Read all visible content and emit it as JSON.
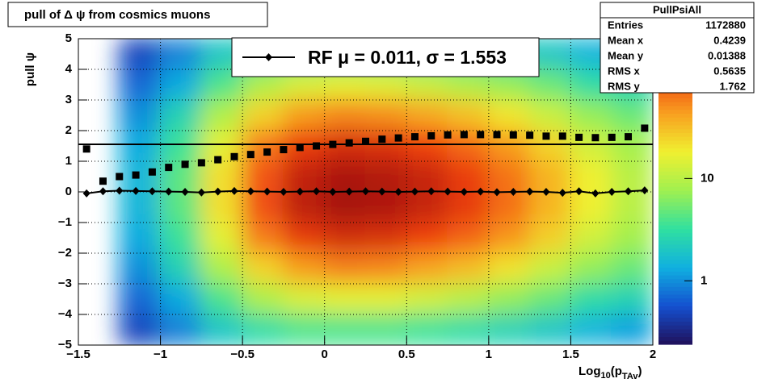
{
  "chart_data": {
    "type": "heatmap",
    "title": "pull of Δ ψ from cosmics muons",
    "y_label": "pull ψ",
    "x_label": {
      "main": "Log",
      "sub": "10",
      "open": "(p",
      "sub2": "TAv",
      "close": ")"
    },
    "xlim": [
      -1.5,
      2
    ],
    "ylim": [
      -5,
      5
    ],
    "xticks": [
      {
        "value": -1.5,
        "label": "−1.5"
      },
      {
        "value": -1,
        "label": "−1"
      },
      {
        "value": -0.5,
        "label": "−0.5"
      },
      0,
      0.5,
      1,
      1.5,
      2
    ],
    "yticks": [
      {
        "value": -5,
        "label": "−5"
      },
      {
        "value": -4,
        "label": "−4"
      },
      {
        "value": -3,
        "label": "−3"
      },
      {
        "value": -2,
        "label": "−2"
      },
      {
        "value": -1,
        "label": "−1"
      },
      0,
      1,
      2,
      3,
      4,
      5
    ],
    "grid": true,
    "zlim": [
      0.24,
      245
    ],
    "zscale": "log",
    "zticks": [
      1,
      10
    ],
    "colors": [
      "#20105a",
      "#1450d0",
      "#10b0e0",
      "#30e0a0",
      "#a0f050",
      "#f0f030",
      "#f8a020",
      "#f04010",
      "#a01008"
    ],
    "heatmap": {
      "xbins": [
        -1.5,
        -1.25,
        -1,
        -0.75,
        -0.5,
        -0.25,
        0,
        0.25,
        0.5,
        0.75,
        1,
        1.25,
        1.5,
        1.75,
        2
      ],
      "ybins": [
        5,
        4,
        3,
        2,
        1,
        0,
        -1,
        -2,
        -3,
        -4,
        -5
      ],
      "counts": [
        [
          0.2,
          0.5,
          0.9,
          2,
          3,
          4,
          4,
          4,
          3.5,
          3,
          2.5,
          2,
          1.5,
          1.2
        ],
        [
          0.2,
          0.7,
          1.3,
          4,
          9,
          14,
          16,
          15,
          12,
          9,
          7,
          5,
          3,
          2.5
        ],
        [
          0.2,
          1,
          2.5,
          9,
          25,
          45,
          55,
          50,
          40,
          30,
          20,
          12,
          7,
          5
        ],
        [
          0.2,
          1.3,
          3.5,
          16,
          60,
          110,
          140,
          130,
          100,
          70,
          45,
          25,
          13,
          8
        ],
        [
          0.2,
          1.5,
          4.5,
          22,
          85,
          170,
          220,
          200,
          160,
          110,
          65,
          35,
          18,
          10
        ],
        [
          0.2,
          1.5,
          4.5,
          22,
          90,
          180,
          230,
          210,
          165,
          115,
          68,
          35,
          18,
          10
        ],
        [
          0.2,
          1.3,
          3.5,
          16,
          60,
          115,
          145,
          135,
          105,
          75,
          48,
          26,
          13,
          8
        ],
        [
          0.2,
          1,
          2.5,
          9,
          25,
          45,
          58,
          55,
          42,
          32,
          21,
          12,
          7,
          5
        ],
        [
          0.2,
          0.7,
          1.3,
          4,
          9,
          14,
          16,
          16,
          13,
          10,
          7,
          5,
          3,
          2.5
        ],
        [
          0.2,
          0.5,
          0.9,
          2,
          3,
          4,
          4,
          4,
          3.5,
          3,
          2.5,
          2,
          1.5,
          1.2
        ]
      ]
    },
    "x": [
      -1.45,
      -1.35,
      -1.25,
      -1.15,
      -1.05,
      -0.95,
      -0.85,
      -0.75,
      -0.65,
      -0.55,
      -0.45,
      -0.35,
      -0.25,
      -0.15,
      -0.05,
      0.05,
      0.15,
      0.25,
      0.35,
      0.45,
      0.55,
      0.65,
      0.75,
      0.85,
      0.95,
      1.05,
      1.15,
      1.25,
      1.35,
      1.45,
      1.55,
      1.65,
      1.75,
      1.85,
      1.95
    ],
    "series": [
      {
        "marker": "square",
        "color": "#000000",
        "values": [
          1.4,
          0.35,
          0.5,
          0.55,
          0.65,
          0.8,
          0.9,
          0.95,
          1.05,
          1.15,
          1.22,
          1.3,
          1.38,
          1.45,
          1.5,
          1.55,
          1.6,
          1.65,
          1.72,
          1.76,
          1.8,
          1.83,
          1.86,
          1.87,
          1.87,
          1.87,
          1.86,
          1.85,
          1.82,
          1.82,
          1.78,
          1.77,
          1.78,
          1.8,
          2.08
        ]
      },
      {
        "name": "RF μ =  0.011, σ =   1.553",
        "marker": "diamond",
        "color": "#000000",
        "values": [
          -0.05,
          0.02,
          0.04,
          0.03,
          0.02,
          0.01,
          0,
          -0.02,
          0.01,
          0.03,
          0.02,
          0.01,
          0,
          0.01,
          0.02,
          0,
          0.01,
          0.02,
          0.01,
          0,
          0.01,
          0.02,
          0.01,
          0,
          0.01,
          -0.01,
          0,
          0.01,
          0,
          -0.03,
          0.02,
          -0.05,
          0,
          0.02,
          0.05
        ]
      }
    ],
    "fit_sigma": 1.553,
    "stats": {
      "title": "PullPsiAll",
      "rows": [
        [
          "Entries",
          "1172880"
        ],
        [
          "Mean x",
          "0.4239"
        ],
        [
          "Mean y",
          "0.01388"
        ],
        [
          "RMS x",
          "0.5635"
        ],
        [
          "RMS y",
          "1.762"
        ]
      ]
    }
  }
}
